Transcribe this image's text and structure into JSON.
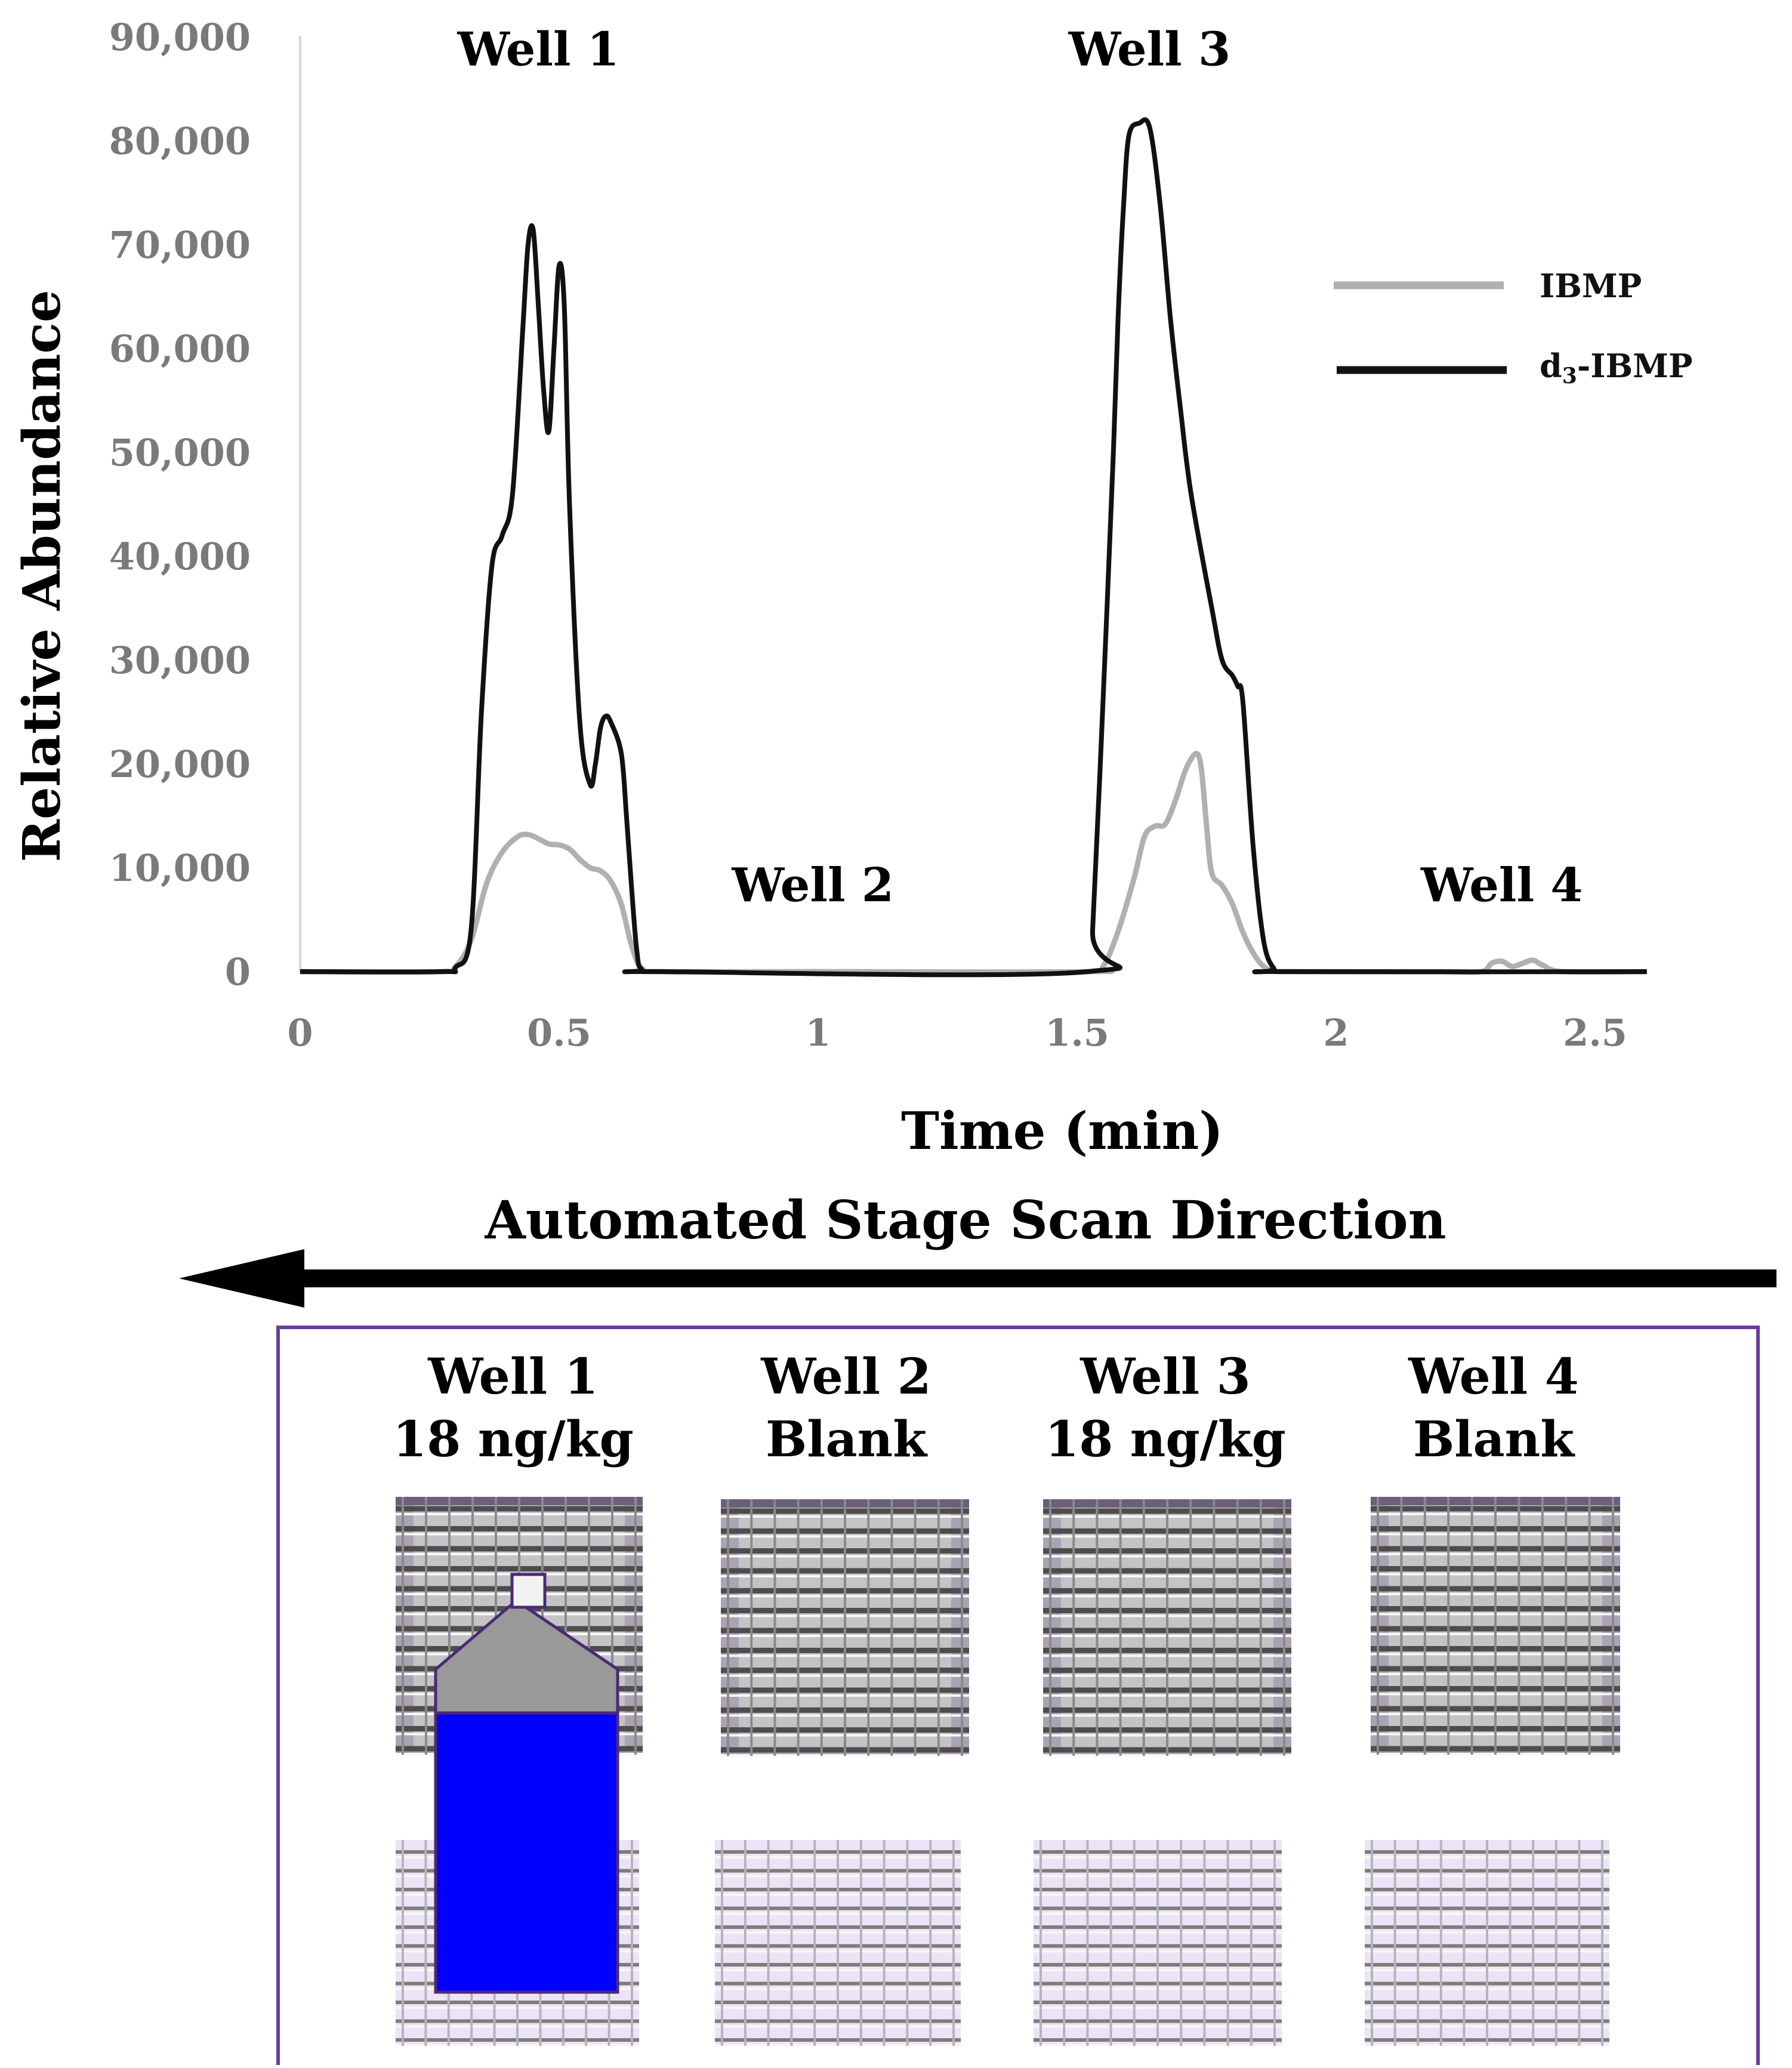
{
  "chart_data": {
    "type": "line",
    "title": "",
    "xlabel": "Time (min)",
    "ylabel": "Relative Abundance",
    "xlim": [
      0,
      2.6
    ],
    "ylim": [
      0,
      90000
    ],
    "x_ticks": [
      0,
      0.5,
      1,
      1.5,
      2,
      2.5
    ],
    "x_tick_labels": [
      "0",
      "0.5",
      "1",
      "1.5",
      "2",
      "2.5"
    ],
    "y_ticks": [
      0,
      10000,
      20000,
      30000,
      40000,
      50000,
      60000,
      70000,
      80000,
      90000
    ],
    "y_tick_labels": [
      "0",
      "10,000",
      "20,000",
      "30,000",
      "40,000",
      "50,000",
      "60,000",
      "70,000",
      "80,000",
      "90,000"
    ],
    "legend_position": "top-right",
    "grid": false,
    "series": [
      {
        "name": "IBMP",
        "color": "#b0b0b0",
        "x": [
          0,
          0.27,
          0.3,
          0.33,
          0.36,
          0.39,
          0.42,
          0.44,
          0.46,
          0.48,
          0.5,
          0.52,
          0.54,
          0.56,
          0.58,
          0.6,
          0.62,
          0.64,
          0.66,
          0.7,
          1.0,
          1.52,
          1.55,
          1.58,
          1.61,
          1.63,
          1.65,
          1.67,
          1.69,
          1.71,
          1.73,
          1.74,
          1.75,
          1.76,
          1.78,
          1.8,
          1.82,
          1.84,
          1.86,
          1.88,
          1.92,
          2.2,
          2.28,
          2.3,
          2.32,
          2.34,
          2.36,
          2.38,
          2.4,
          2.44,
          2.6
        ],
        "y": [
          0,
          0,
          500,
          3000,
          8500,
          11500,
          13000,
          13200,
          12800,
          12300,
          12200,
          11800,
          10800,
          10000,
          9700,
          8700,
          6500,
          2500,
          300,
          0,
          0,
          0,
          500,
          4000,
          9000,
          13000,
          14000,
          14200,
          16500,
          19500,
          21000,
          19500,
          14000,
          9500,
          8300,
          6500,
          3800,
          1800,
          500,
          100,
          0,
          0,
          0,
          800,
          1000,
          500,
          800,
          1100,
          600,
          0,
          0
        ]
      },
      {
        "name": "d3-IBMP",
        "color": "#111111",
        "x": [
          0,
          0.27,
          0.3,
          0.33,
          0.35,
          0.37,
          0.39,
          0.41,
          0.43,
          0.44,
          0.45,
          0.46,
          0.47,
          0.48,
          0.49,
          0.5,
          0.51,
          0.52,
          0.54,
          0.56,
          0.57,
          0.58,
          0.59,
          0.6,
          0.62,
          0.63,
          0.64,
          0.65,
          0.66,
          0.7,
          1.52,
          1.53,
          1.55,
          1.57,
          1.58,
          1.59,
          1.6,
          1.62,
          1.64,
          1.66,
          1.68,
          1.7,
          1.72,
          1.76,
          1.78,
          1.8,
          1.81,
          1.82,
          1.84,
          1.86,
          1.88,
          1.9,
          2.6
        ],
        "y": [
          0,
          0,
          400,
          4000,
          25000,
          39000,
          42000,
          46000,
          62000,
          70000,
          71400,
          64000,
          56000,
          52000,
          60000,
          68000,
          64000,
          45000,
          24000,
          18000,
          20000,
          23500,
          24600,
          24000,
          21000,
          15000,
          8000,
          2000,
          200,
          0,
          0,
          4000,
          26000,
          50000,
          64000,
          74000,
          80500,
          81700,
          81300,
          74000,
          63000,
          54000,
          46000,
          35000,
          30000,
          28500,
          27500,
          26000,
          12000,
          3000,
          300,
          0,
          0
        ]
      }
    ],
    "annotations": [
      {
        "text": "Well 1",
        "x": 0.46,
        "y": 89000
      },
      {
        "text": "Well 2",
        "x": 0.99,
        "y": 8500
      },
      {
        "text": "Well 3",
        "x": 1.64,
        "y": 89000
      },
      {
        "text": "Well 4",
        "x": 2.32,
        "y": 8500
      }
    ]
  },
  "legend": [
    {
      "name": "IBMP",
      "color": "#b0b0b0"
    },
    {
      "name": "d3-IBMP",
      "prefix": "d",
      "sub": "3",
      "suffix": "-IBMP",
      "color": "#111111"
    }
  ],
  "scan_direction_label": "Automated Stage Scan Direction",
  "wells": [
    {
      "name": "Well 1",
      "sample": "18 ng/kg"
    },
    {
      "name": "Well 2",
      "sample": "Blank"
    },
    {
      "name": "Well 3",
      "sample": "18 ng/kg"
    },
    {
      "name": "Well 4",
      "sample": "Blank"
    }
  ],
  "colors": {
    "panel_border": "#6a3d9a",
    "probe_body": "#0000ff",
    "probe_cap": "#999999",
    "mesh_tint": "#ece4f6"
  },
  "icons": [
    "arrow-left-icon",
    "spray-probe-icon",
    "mesh-grid-icon"
  ]
}
